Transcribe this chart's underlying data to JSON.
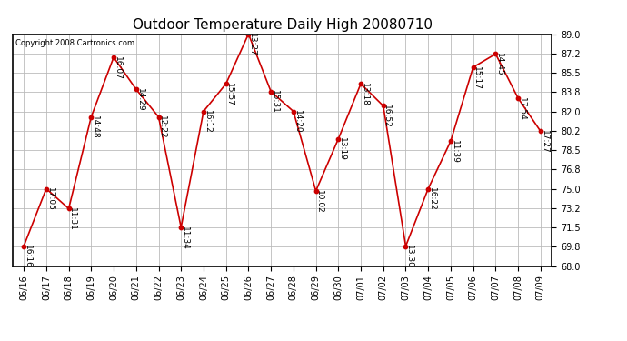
{
  "title": "Outdoor Temperature Daily High 20080710",
  "copyright": "Copyright 2008 Cartronics.com",
  "dates": [
    "06/16",
    "06/17",
    "06/18",
    "06/19",
    "06/20",
    "06/21",
    "06/22",
    "06/23",
    "06/24",
    "06/25",
    "06/26",
    "06/27",
    "06/28",
    "06/29",
    "06/30",
    "07/01",
    "07/02",
    "07/03",
    "07/04",
    "07/05",
    "07/06",
    "07/07",
    "07/08",
    "07/09"
  ],
  "temperatures": [
    69.8,
    75.0,
    73.2,
    81.5,
    86.9,
    84.0,
    81.5,
    71.5,
    82.0,
    84.5,
    89.0,
    83.8,
    82.0,
    74.8,
    79.5,
    84.5,
    82.5,
    69.8,
    75.0,
    79.3,
    86.0,
    87.2,
    83.2,
    80.2
  ],
  "labels": [
    "16:16",
    "17:05",
    "11:31",
    "14:48",
    "16:07",
    "14:29",
    "12:22",
    "11:34",
    "16:12",
    "15:57",
    "13:27",
    "15:31",
    "14:20",
    "10:02",
    "13:19",
    "13:18",
    "16:52",
    "13:30",
    "16:22",
    "11:39",
    "15:17",
    "14:45",
    "17:54",
    "17:27"
  ],
  "line_color": "#cc0000",
  "marker_color": "#cc0000",
  "background_color": "#ffffff",
  "plot_bg_color": "#ffffff",
  "grid_color": "#bbbbbb",
  "ylim": [
    68.0,
    89.0
  ],
  "yticks": [
    68.0,
    69.8,
    71.5,
    73.2,
    75.0,
    76.8,
    78.5,
    80.2,
    82.0,
    83.8,
    85.5,
    87.2,
    89.0
  ],
  "title_fontsize": 11,
  "label_fontsize": 6.5,
  "tick_fontsize": 7,
  "copyright_fontsize": 6,
  "label_rotation": 270
}
